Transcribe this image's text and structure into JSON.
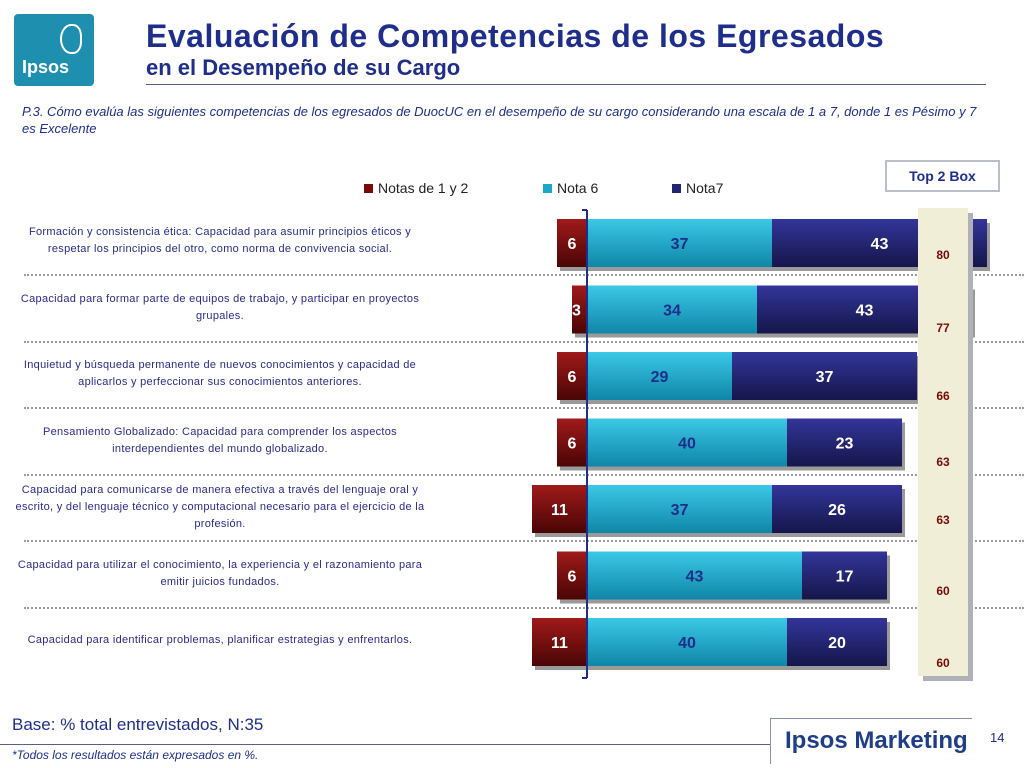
{
  "logo_text": "Ipsos",
  "title_line1": "Evaluación de Competencias de los Egresados",
  "title_line2": "en el Desempeño de su Cargo",
  "question": "P.3. Cómo evalúa las siguientes competencias de los egresados de DuocUC en el desempeño de su cargo  considerando una escala de 1 a 7,  donde 1 es Pésimo y 7 es Excelente",
  "top2_label": "Top 2 Box",
  "base_text": "Base: % total entrevistados, N:35",
  "footnote": "*Todos los resultados están expresados en %.",
  "brand": "Ipsos Marketing",
  "page_number": "14",
  "colors": {
    "low": "#7a0a0a",
    "nota6": "#19a8cc",
    "nota7": "#232570",
    "title": "#1e2e8a"
  },
  "chart_data": {
    "type": "bar",
    "orientation": "horizontal",
    "stacking": "diverging",
    "categories": [
      "Formación y consistencia ética: Capacidad para asumir principios éticos y respetar los principios del otro, como norma de convivencia social.",
      "Capacidad para formar parte de equipos de trabajo, y participar en proyectos grupales.",
      "Inquietud y búsqueda permanente de nuevos conocimientos y capacidad de aplicarlos y perfeccionar sus conocimientos anteriores.",
      "Pensamiento Globalizado: Capacidad para comprender los aspectos interdependientes del mundo globalizado.",
      "Capacidad para comunicarse de manera efectiva a través del lenguaje oral y escrito, y del lenguaje técnico y computacional necesario para el ejercicio de la profesión.",
      "Capacidad para utilizar el conocimiento, la experiencia y el razonamiento para emitir juicios fundados.",
      "Capacidad para identificar problemas, planificar estrategias y enfrentarlos."
    ],
    "label_lines": [
      [
        "Formación y consistencia ética: Capacidad para asumir principios éticos y",
        "respetar los principios del otro, como norma de convivencia social."
      ],
      [
        "Capacidad para formar parte de equipos de trabajo, y participar en proyectos",
        "grupales."
      ],
      [
        "Inquietud y búsqueda permanente de nuevos conocimientos y capacidad de",
        "aplicarlos y perfeccionar sus conocimientos anteriores."
      ],
      [
        "Pensamiento Globalizado: Capacidad para comprender los aspectos",
        "interdependientes del mundo globalizado."
      ],
      [
        "Capacidad para comunicarse de manera efectiva a través del lenguaje oral y",
        "escrito, y del lenguaje técnico y computacional necesario para el ejercicio de la",
        "profesión."
      ],
      [
        "Capacidad para utilizar el conocimiento, la experiencia y el razonamiento para",
        "emitir juicios fundados."
      ],
      [
        "Capacidad para identificar problemas, planificar estrategias y enfrentarlos."
      ]
    ],
    "series": [
      {
        "name": "Notas de 1 y 2",
        "values": [
          6,
          3,
          6,
          6,
          11,
          6,
          11
        ]
      },
      {
        "name": "Nota 6",
        "values": [
          37,
          34,
          29,
          40,
          37,
          43,
          40
        ]
      },
      {
        "name": "Nota7",
        "values": [
          43,
          43,
          37,
          23,
          26,
          17,
          20
        ]
      }
    ],
    "top2box": [
      80,
      77,
      66,
      63,
      63,
      60,
      60
    ],
    "xlim": [
      -12,
      86
    ]
  }
}
